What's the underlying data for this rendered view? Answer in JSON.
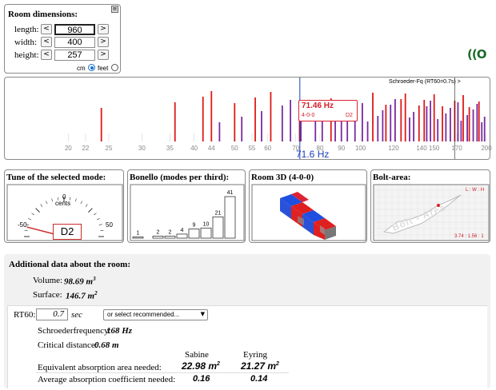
{
  "dimensions": {
    "title": "Room dimensions:",
    "length_label": "length:",
    "width_label": "width:",
    "height_label": "height:",
    "length": "960",
    "width": "400",
    "height": "257",
    "dec": "<",
    "inc": ">",
    "unit_cm": "cm",
    "unit_feet": "feet",
    "unit_selected": "cm",
    "close_glyph": "≡"
  },
  "logo": "((O",
  "spectrum": {
    "schroeder_label": "Schroeder-Fq (RT60=0.7s) >",
    "cursor_freq": "71.6 Hz",
    "ticks": [
      "20",
      "22",
      "25",
      "30",
      "35",
      "40",
      "44",
      "50",
      "55",
      "60",
      "70",
      "80",
      "90",
      "100",
      "120",
      "140",
      "150",
      "170",
      "200"
    ],
    "selected_mode": {
      "freq": "71.46 Hz",
      "mode": "4-0-0",
      "note": "D2"
    },
    "modes_red": [
      24,
      36,
      42,
      44,
      50,
      56,
      61,
      71.5,
      85,
      107,
      115,
      125,
      128,
      138,
      142,
      150,
      157,
      168,
      176,
      182,
      192
    ],
    "modes_purple": [
      46,
      52,
      58,
      65,
      68,
      72,
      78,
      81,
      87,
      90,
      93,
      97,
      101,
      104,
      110,
      113,
      118,
      121,
      131,
      134,
      144,
      147,
      153,
      160,
      164,
      171,
      174,
      180,
      186,
      190,
      195,
      198
    ]
  },
  "tuning": {
    "title": "Tune of the selected mode:",
    "scale_min": "-50",
    "scale_zero": "0",
    "scale_max": "50",
    "unit": "cents",
    "note": "D2",
    "cents": -42
  },
  "bonello": {
    "title": "Bonello (modes per third):",
    "values": [
      1,
      2,
      2,
      4,
      9,
      10,
      21,
      41
    ]
  },
  "room3d": {
    "title": "Room 3D (4-0-0)"
  },
  "bolt": {
    "title": "Bolt-area:",
    "lwh_label": "L : W : H",
    "ratio": "3.74 : 1.56 : 1",
    "watermark": "Bolt - Area"
  },
  "additional": {
    "title": "Additional data about the room:",
    "volume_label": "Volume:",
    "volume_value": "98.69 m",
    "surface_label": "Surface:",
    "surface_value": "146.7 m",
    "sup3": "3",
    "sup2": "2",
    "rt60_label": "RT60:",
    "rt60_value": "0.7",
    "rt60_unit": "sec",
    "select_placeholder": "or select recommended...",
    "schroeder_label": "Schroederfrequency:",
    "schroeder_value": "168 Hz",
    "critical_label": "Critical distance:",
    "critical_value": "0.68 m",
    "col_sabine": "Sabine",
    "col_eyring": "Eyring",
    "row1_label": "Equivalent absorption area needed:",
    "row1_sabine": "22.98 m",
    "row1_eyring": "21.27 m",
    "row2_label": "Average absorption coefficient needed:",
    "row2_sabine": "0.16",
    "row2_eyring": "0.14"
  }
}
